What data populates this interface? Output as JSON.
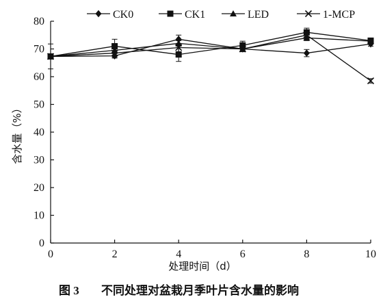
{
  "chart_data": {
    "type": "line",
    "x": [
      0,
      2,
      4,
      6,
      8,
      10
    ],
    "xlabel": "处理时间（d）",
    "ylabel": "含水量（%）",
    "xlim": [
      0,
      10
    ],
    "ylim": [
      0,
      80
    ],
    "xticks": [
      0,
      2,
      4,
      6,
      8,
      10
    ],
    "yticks": [
      0,
      10,
      20,
      30,
      40,
      50,
      60,
      70,
      80
    ],
    "legend_position": "top",
    "series": [
      {
        "name": "CK0",
        "marker": "diamond",
        "values": [
          67.3,
          67.5,
          73.5,
          70.0,
          68.5,
          71.8
        ],
        "errors": [
          0,
          0.8,
          1.5,
          0.8,
          1.3,
          0.8
        ]
      },
      {
        "name": "CK1",
        "marker": "square",
        "values": [
          67.3,
          71.0,
          68.0,
          71.3,
          76.0,
          73.0
        ],
        "errors": [
          0,
          2.5,
          2.5,
          1.5,
          1.5,
          0.8
        ]
      },
      {
        "name": "LED",
        "marker": "triangle",
        "values": [
          67.3,
          69.5,
          72.0,
          70.0,
          74.0,
          72.8
        ],
        "errors": [
          0,
          1.0,
          1.0,
          1.0,
          1.0,
          0.8
        ]
      },
      {
        "name": "1-MCP",
        "marker": "x",
        "values": [
          67.3,
          68.5,
          70.5,
          70.0,
          75.0,
          58.5
        ],
        "errors": [
          4.5,
          1.5,
          1.5,
          1.0,
          1.5,
          0.8
        ]
      }
    ]
  },
  "caption": {
    "label": "图 3",
    "text": "不同处理对盆栽月季叶片含水量的影响"
  }
}
